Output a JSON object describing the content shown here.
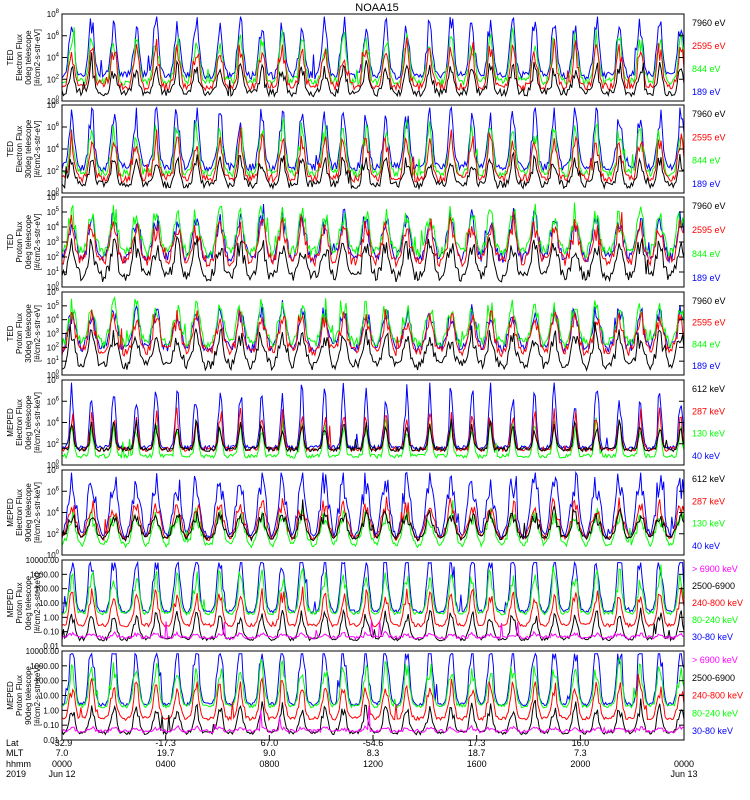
{
  "title": "NOAA15",
  "colors": {
    "black": "#000000",
    "red": "#ff0000",
    "green": "#00ff00",
    "blue": "#0000ff",
    "magenta": "#ff00ff"
  },
  "chart_data": [
    {
      "type": "line",
      "ylabel": [
        "TED",
        "Electron Flux",
        "0deg telescope",
        "[#/cm2-s-str-eV]"
      ],
      "y_scale": "log",
      "y_ticks": [
        "10^0",
        "10^2",
        "10^4",
        "10^6",
        "10^8"
      ],
      "series": [
        {
          "name": "7960 eV",
          "color": "black"
        },
        {
          "name": "2595 eV",
          "color": "red"
        },
        {
          "name": "844 eV",
          "color": "green"
        },
        {
          "name": "189 eV",
          "color": "blue"
        }
      ]
    },
    {
      "type": "line",
      "ylabel": [
        "TED",
        "Electron Flux",
        "30deg telescope",
        "[#/cm2-s-str-eV]"
      ],
      "y_scale": "log",
      "y_ticks": [
        "10^0",
        "10^2",
        "10^4",
        "10^6",
        "10^8"
      ],
      "series": [
        {
          "name": "7960 eV",
          "color": "black"
        },
        {
          "name": "2595 eV",
          "color": "red"
        },
        {
          "name": "844 eV",
          "color": "green"
        },
        {
          "name": "189 eV",
          "color": "blue"
        }
      ]
    },
    {
      "type": "line",
      "ylabel": [
        "TED",
        "Proton Flux",
        "0deg telescope",
        "[#/cm2-s-str-eV]"
      ],
      "y_scale": "log",
      "y_ticks": [
        "10^0",
        "10^1",
        "10^2",
        "10^3",
        "10^4",
        "10^5",
        "10^6"
      ],
      "series": [
        {
          "name": "7960 eV",
          "color": "black"
        },
        {
          "name": "2595 eV",
          "color": "red"
        },
        {
          "name": "844 eV",
          "color": "green"
        },
        {
          "name": "189 eV",
          "color": "blue"
        }
      ]
    },
    {
      "type": "line",
      "ylabel": [
        "TED",
        "Proton Flux",
        "30deg telescope",
        "[#/cm2-s-str-eV]"
      ],
      "y_scale": "log",
      "y_ticks": [
        "10^0",
        "10^1",
        "10^2",
        "10^3",
        "10^4",
        "10^5",
        "10^6"
      ],
      "series": [
        {
          "name": "7960 eV",
          "color": "black"
        },
        {
          "name": "2595 eV",
          "color": "red"
        },
        {
          "name": "844 eV",
          "color": "green"
        },
        {
          "name": "189 eV",
          "color": "blue"
        }
      ]
    },
    {
      "type": "line",
      "ylabel": [
        "MEPED",
        "Electron Flux",
        "0deg telescope",
        "[#/cm2-s-str-keV]"
      ],
      "y_scale": "log",
      "y_ticks": [
        "10^0",
        "10^2",
        "10^4",
        "10^6",
        "10^8"
      ],
      "series": [
        {
          "name": "612 keV",
          "color": "black"
        },
        {
          "name": "287 keV",
          "color": "red"
        },
        {
          "name": "130 keV",
          "color": "green"
        },
        {
          "name": "40 keV",
          "color": "blue"
        }
      ]
    },
    {
      "type": "line",
      "ylabel": [
        "MEPED",
        "Electron Flux",
        "90deg telescope",
        "[#/cm2-s-str-keV]"
      ],
      "y_scale": "log",
      "y_ticks": [
        "10^0",
        "10^2",
        "10^4",
        "10^6",
        "10^8"
      ],
      "series": [
        {
          "name": "612 keV",
          "color": "black"
        },
        {
          "name": "287 keV",
          "color": "red"
        },
        {
          "name": "130 keV",
          "color": "green"
        },
        {
          "name": "40 keV",
          "color": "blue"
        }
      ]
    },
    {
      "type": "line",
      "ylabel": [
        "MEPED",
        "Proton Flux",
        "0deg telescope",
        "[#/cm2-s-str-keV]"
      ],
      "y_scale": "log",
      "y_ticks": [
        "0.01",
        "0.10",
        "1.00",
        "10.00",
        "100.00",
        "1000.00",
        "10000.00"
      ],
      "series": [
        {
          "name": "> 6900 keV",
          "color": "magenta"
        },
        {
          "name": "2500-6900",
          "color": "black"
        },
        {
          "name": "240-800 keV",
          "color": "red"
        },
        {
          "name": "80-240 keV",
          "color": "green"
        },
        {
          "name": "30-80 keV",
          "color": "blue"
        }
      ]
    },
    {
      "type": "line",
      "ylabel": [
        "MEPED",
        "Proton Flux",
        "90deg telescope",
        "[#/cm2-s-str-keV]"
      ],
      "y_scale": "log",
      "y_ticks": [
        "0.01",
        "0.10",
        "1.00",
        "10.00",
        "100.00",
        "1000.00",
        "10000.00"
      ],
      "series": [
        {
          "name": "> 6900 keV",
          "color": "magenta"
        },
        {
          "name": "2500-6900",
          "color": "black"
        },
        {
          "name": "240-800 keV",
          "color": "red"
        },
        {
          "name": "80-240 keV",
          "color": "green"
        },
        {
          "name": "30-80 keV",
          "color": "blue"
        }
      ]
    }
  ],
  "x_axis": {
    "row_labels": [
      "Lat",
      "MLT",
      "hhmm",
      "2019"
    ],
    "ticks": [
      {
        "lat": "-32.9",
        "mlt": "7.0",
        "hhmm": "0000",
        "date": "Jun 12"
      },
      {
        "lat": "-17.3",
        "mlt": "19.7",
        "hhmm": "0400",
        "date": ""
      },
      {
        "lat": "67.0",
        "mlt": "9.0",
        "hhmm": "0800",
        "date": ""
      },
      {
        "lat": "-54.6",
        "mlt": "8.3",
        "hhmm": "1200",
        "date": ""
      },
      {
        "lat": "17.3",
        "mlt": "18.7",
        "hhmm": "1600",
        "date": ""
      },
      {
        "lat": "16.0",
        "mlt": "7.3",
        "hhmm": "2000",
        "date": ""
      },
      {
        "lat": "",
        "mlt": "",
        "hhmm": "0000",
        "date": "Jun 13"
      }
    ]
  }
}
